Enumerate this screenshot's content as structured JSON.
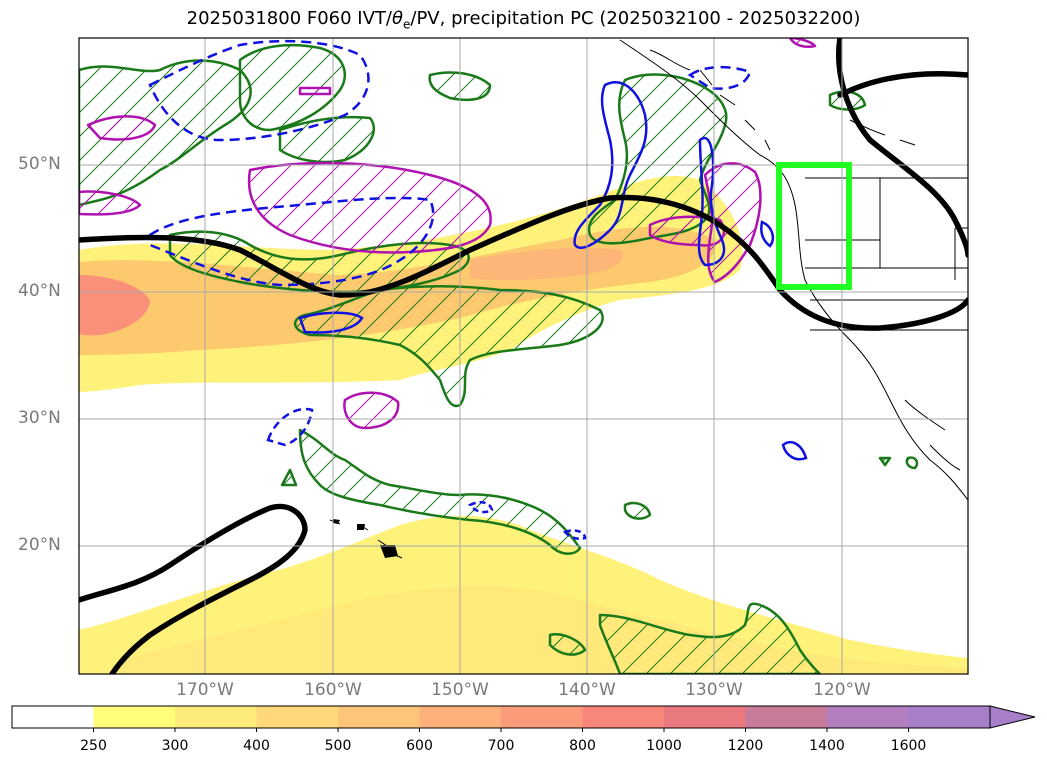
{
  "title": {
    "pre": "2025031800 F060 IVT/",
    "theta": "θ",
    "sub": "e",
    "post": "/PV, precipitation PC (2025032100 - 2025032200)"
  },
  "lat_labels": [
    "50°N",
    "40°N",
    "30°N",
    "20°N"
  ],
  "lon_labels": [
    "170°W",
    "160°W",
    "150°W",
    "140°W",
    "130°W",
    "120°W"
  ],
  "colorbar": {
    "ticks": [
      "250",
      "300",
      "400",
      "500",
      "600",
      "700",
      "800",
      "1000",
      "1200",
      "1400",
      "1600"
    ],
    "colors": [
      "#ffffff",
      "#fefe7a",
      "#fdec7a",
      "#fed87a",
      "#fdc57a",
      "#fdb07a",
      "#fc9b7a",
      "#f9867a",
      "#e9797e",
      "#c97b9a",
      "#b47fbf",
      "#a67fc8"
    ]
  },
  "colors": {
    "ivt_light": "#fff27a",
    "ivt_mid": "#fdc96e",
    "ivt_high": "#fa8f7a",
    "green_contour": "#1a7a1a",
    "magenta_contour": "#b012b0",
    "blue_contour": "#1010e0",
    "box": "#22ff22",
    "jet_line": "#000000"
  }
}
